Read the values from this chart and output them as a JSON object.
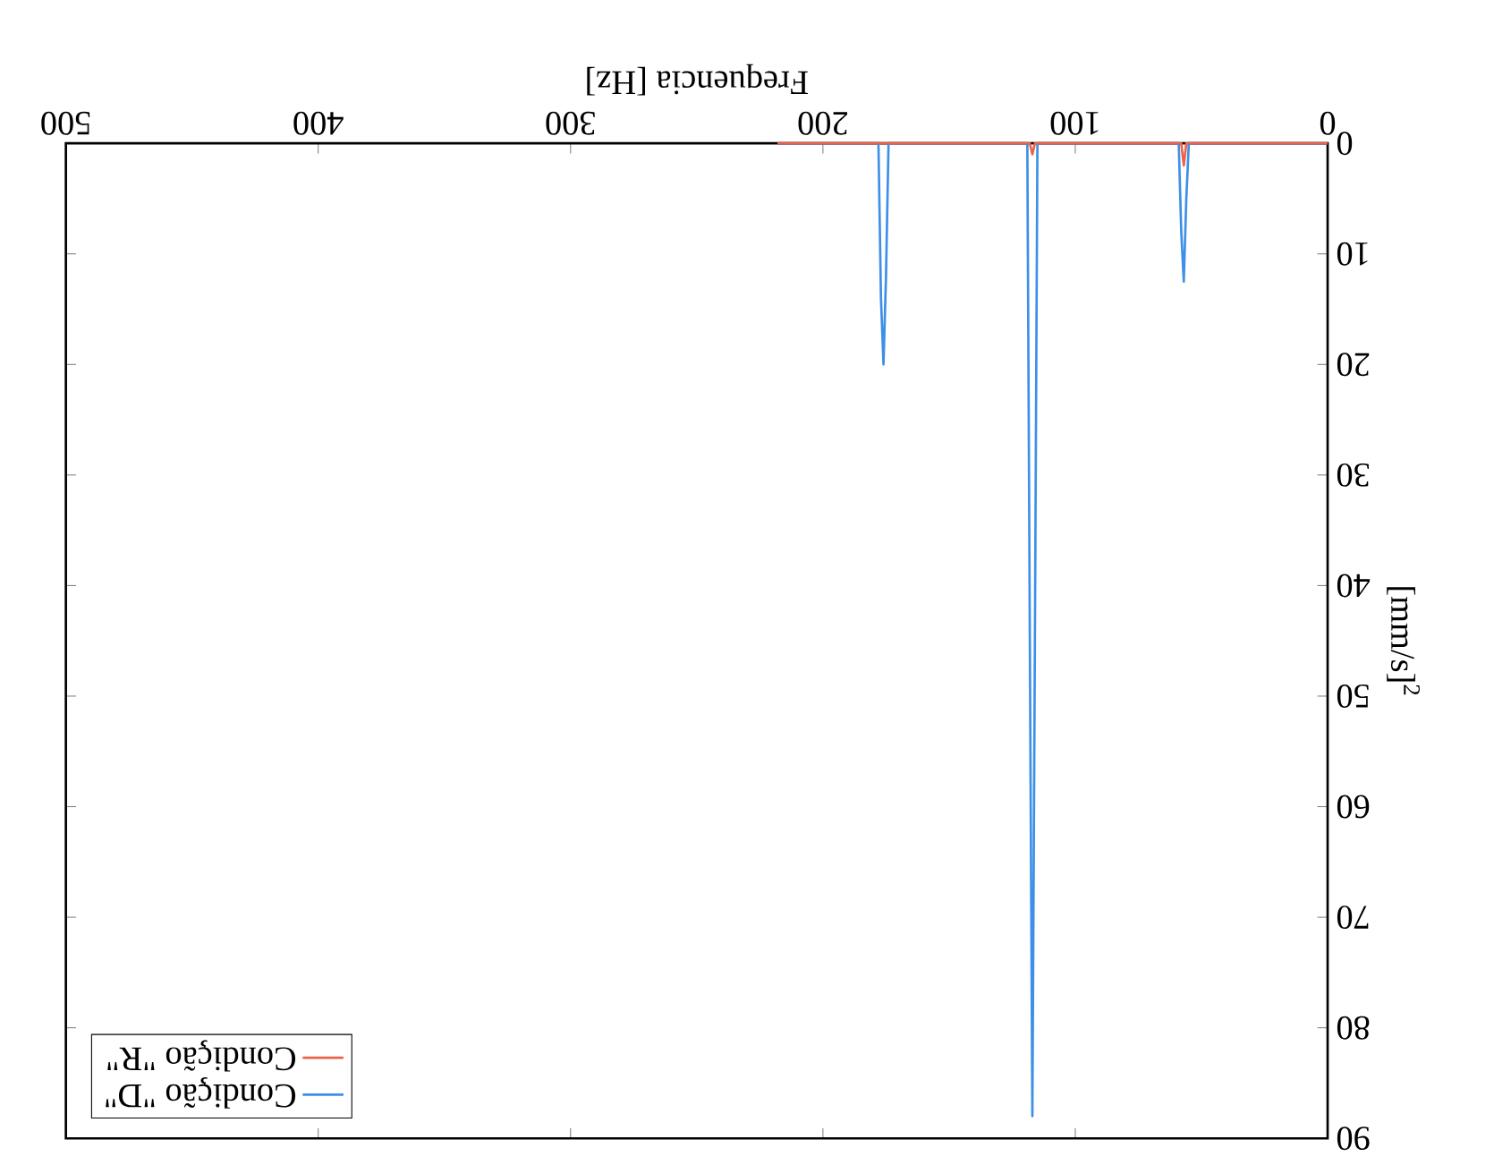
{
  "chart_data": {
    "type": "line",
    "xlabel": "Frequencia [Hz]",
    "ylabel": "[mm/s]$^{2}$",
    "xlim": [
      500,
      0
    ],
    "ylim": [
      90,
      0
    ],
    "xticks": [
      0,
      100,
      200,
      300,
      400,
      500
    ],
    "yticks": [
      0,
      10,
      20,
      30,
      40,
      50,
      60,
      70,
      80,
      90
    ],
    "legend": "bottom left",
    "grid": false,
    "marker": "none",
    "line_style": "solid",
    "series": [
      {
        "name": "Condição \"D\"",
        "color": "#3d8fe8",
        "x": [
          0,
          55,
          56,
          57,
          58,
          59,
          115,
          116,
          117,
          118,
          119,
          174,
          175,
          176,
          177,
          178,
          218
        ],
        "values": [
          0,
          0,
          5,
          12.5,
          8,
          0,
          0,
          45,
          88,
          45,
          0,
          0,
          12,
          20,
          14,
          0,
          0
        ]
      },
      {
        "name": "Condição \"R\"",
        "color": "#e8634a",
        "x": [
          0,
          56,
          57,
          58,
          116,
          117,
          118,
          218
        ],
        "values": [
          0,
          0,
          2,
          0,
          0,
          1,
          0,
          0
        ]
      }
    ]
  }
}
